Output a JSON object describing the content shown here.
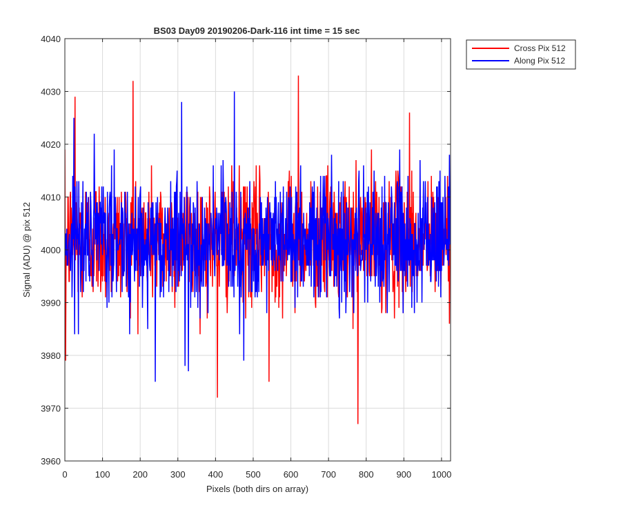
{
  "chart_data": {
    "type": "line",
    "title": "BS03 Day09 20190206-Dark-116 int time = 15 sec",
    "xlabel": "Pixels (both dirs on array)",
    "ylabel": "Signal (ADU) @ pix 512",
    "xlim": [
      0,
      1024
    ],
    "ylim": [
      3960,
      4040
    ],
    "xticks": [
      0,
      100,
      200,
      300,
      400,
      500,
      600,
      700,
      800,
      900,
      1000
    ],
    "yticks": [
      3960,
      3970,
      3980,
      3990,
      4000,
      4010,
      4020,
      4030,
      4040
    ],
    "grid": true,
    "legend_position": "top-right, outside axes",
    "series": [
      {
        "name": "Cross Pix 512",
        "color": "#ff0000",
        "baseline": 4002,
        "noise_sd": 6,
        "n_points": 1024,
        "extremes": [
          {
            "x": 2,
            "y": 3979
          },
          {
            "x": 27,
            "y": 4029
          },
          {
            "x": 181,
            "y": 4032
          },
          {
            "x": 405,
            "y": 3972
          },
          {
            "x": 542,
            "y": 3975
          },
          {
            "x": 620,
            "y": 4033
          },
          {
            "x": 778,
            "y": 3967
          },
          {
            "x": 915,
            "y": 4026
          }
        ]
      },
      {
        "name": "Along Pix 512",
        "color": "#0000ff",
        "baseline": 4002,
        "noise_sd": 6,
        "n_points": 1024,
        "extremes": [
          {
            "x": 24,
            "y": 4025
          },
          {
            "x": 240,
            "y": 3975
          },
          {
            "x": 310,
            "y": 4028
          },
          {
            "x": 319,
            "y": 3978
          },
          {
            "x": 328,
            "y": 3977
          },
          {
            "x": 450,
            "y": 4030
          },
          {
            "x": 475,
            "y": 3979
          }
        ]
      }
    ]
  }
}
